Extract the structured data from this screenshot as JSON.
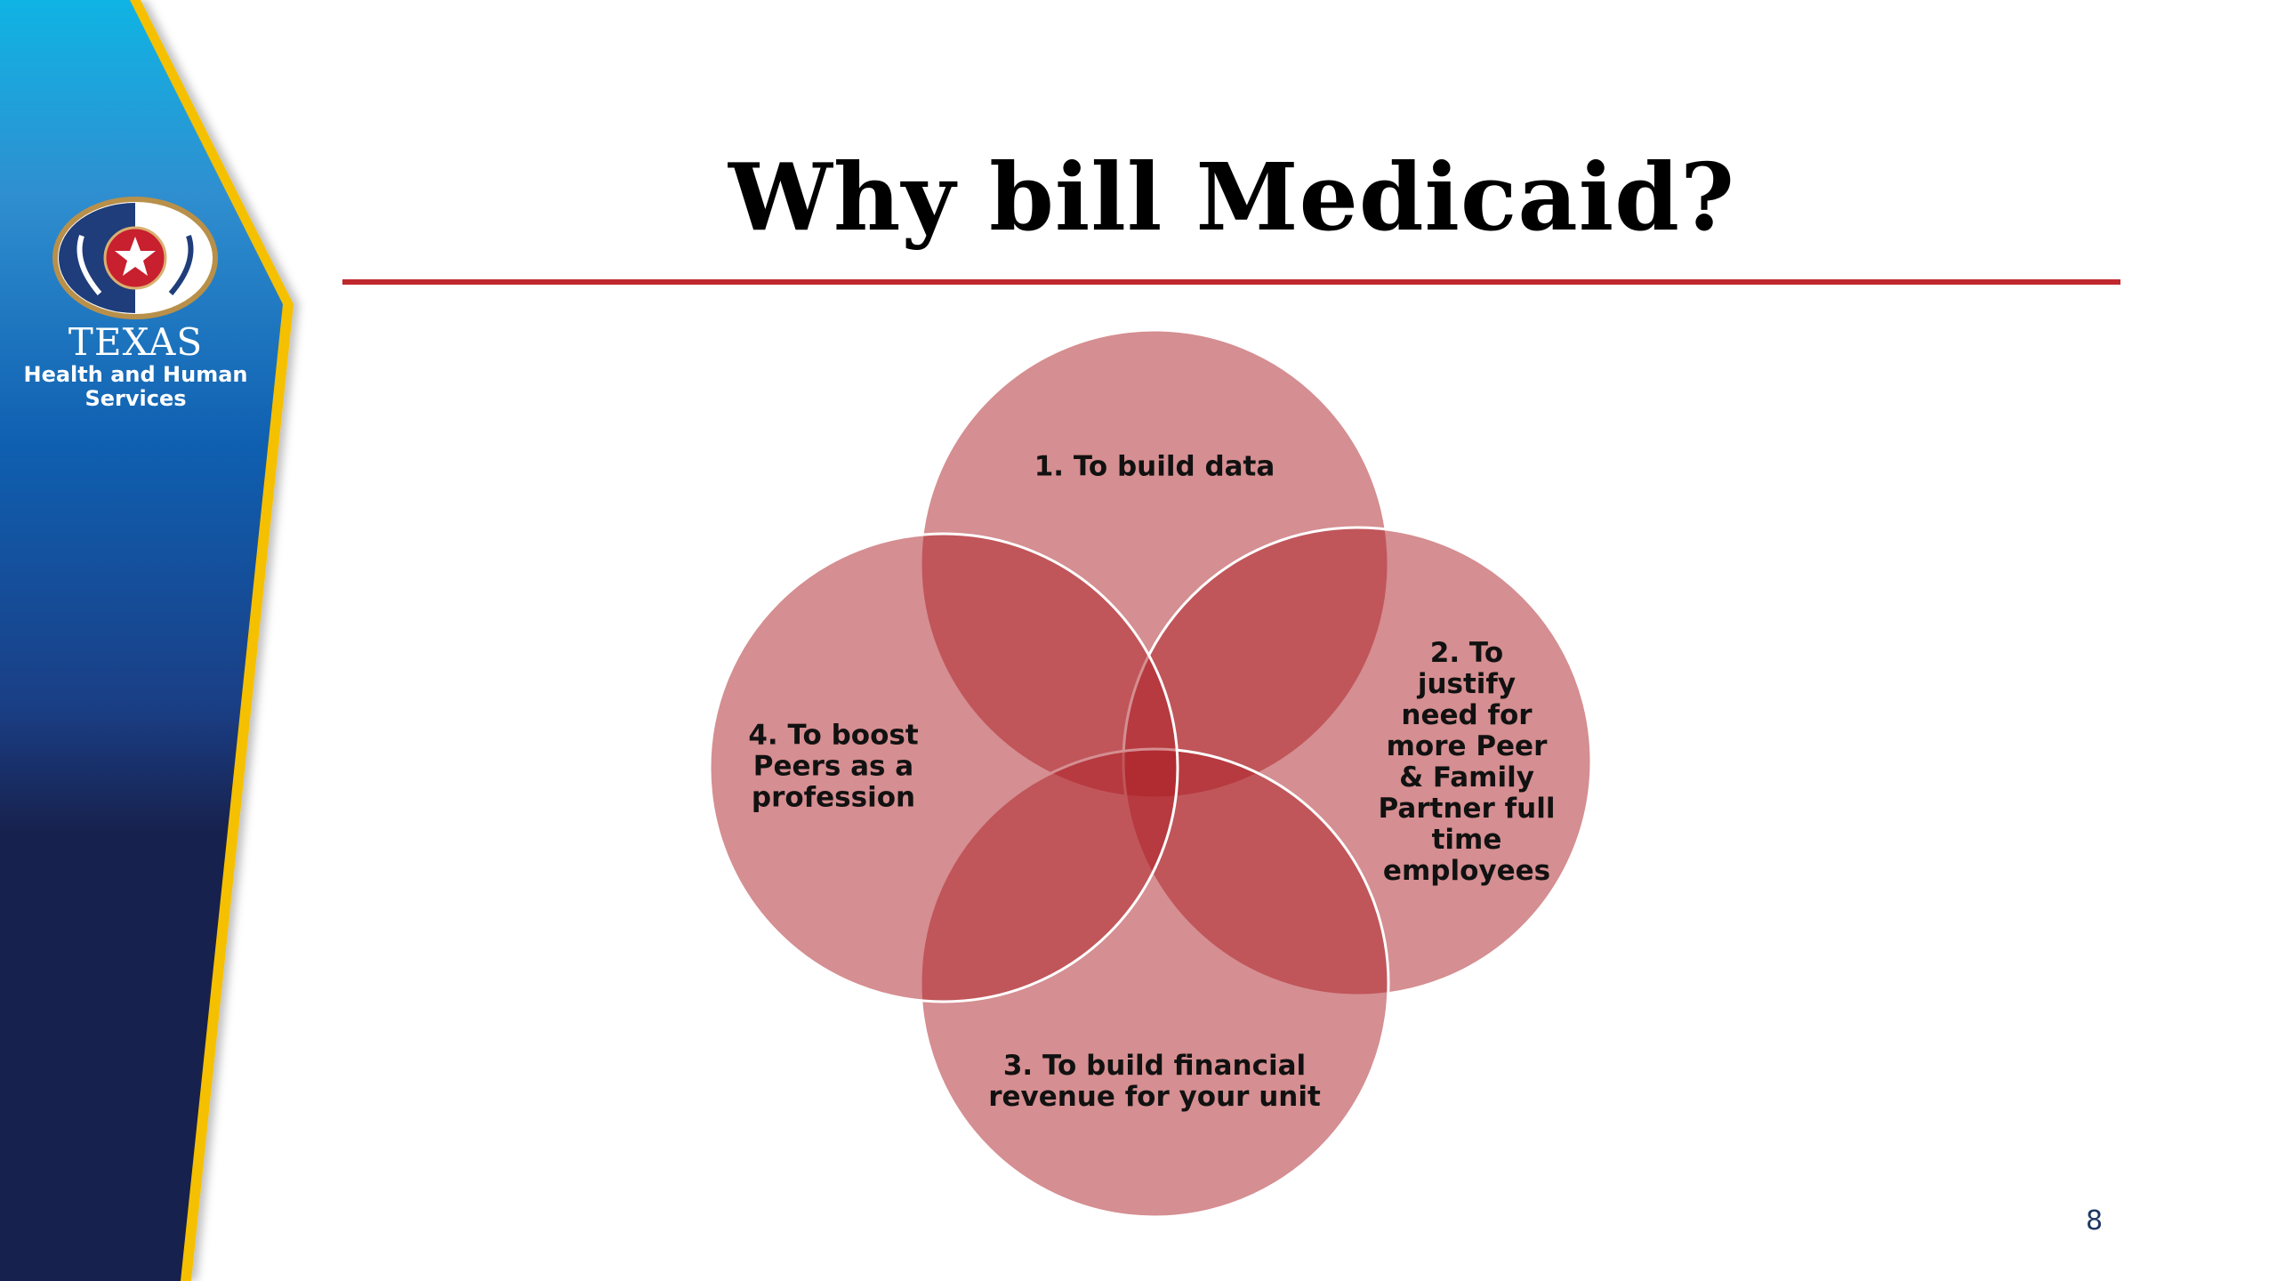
{
  "logo": {
    "line1": "TEXAS",
    "line2": "Health and Human",
    "line3": "Services"
  },
  "title": "Why bill Medicaid?",
  "diagram": {
    "items": [
      "1. To build data",
      [
        "2. To",
        "justify",
        "need for",
        "more Peer",
        "& Family",
        "Partner full",
        "time",
        "employees"
      ],
      [
        "3. To build financial",
        "revenue for your unit"
      ],
      [
        "4. To boost",
        "Peers as a",
        "profession"
      ]
    ]
  },
  "colors": {
    "accent": "#c0282d",
    "circle": "#ab1d23",
    "sidebar_dark": "#17214d",
    "sidebar_light": "#0fb0e0",
    "trim": "#f5c000"
  },
  "page_number": "8"
}
